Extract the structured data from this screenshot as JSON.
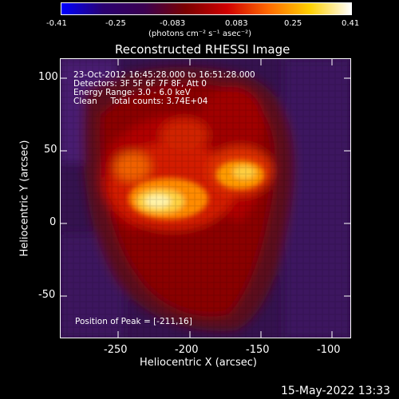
{
  "colorbar": {
    "ticks": [
      "-0.41",
      "-0.25",
      "-0.083",
      "0.083",
      "0.25",
      "0.41"
    ],
    "units": "(photons cm⁻² s⁻¹ asec⁻²)",
    "colormap": [
      "#0000ff",
      "#2a0070",
      "#3a0050",
      "#7a0000",
      "#d00000",
      "#ff6a00",
      "#ffd000",
      "#ffffff"
    ]
  },
  "title": "Reconstructed RHESSI Image",
  "info": {
    "time_range": "23-Oct-2012 16:45:28.000 to 16:51:28.000",
    "detectors": "Detectors: 3F 5F 6F 7F 8F, Att 0",
    "energy_range": "Energy Range: 3.0 - 6.0 keV",
    "algorithm": "Clean     Total counts: 3.74E+04"
  },
  "peak": "Position of Peak = [-211,16]",
  "axes": {
    "xlabel": "Heliocentric X (arcsec)",
    "ylabel": "Heliocentric Y (arcsec)",
    "x_ticks": [
      "-250",
      "-200",
      "-150",
      "-100"
    ],
    "y_ticks": [
      "100",
      "50",
      "0",
      "-50"
    ]
  },
  "footer": "15-May-2022 13:33"
}
